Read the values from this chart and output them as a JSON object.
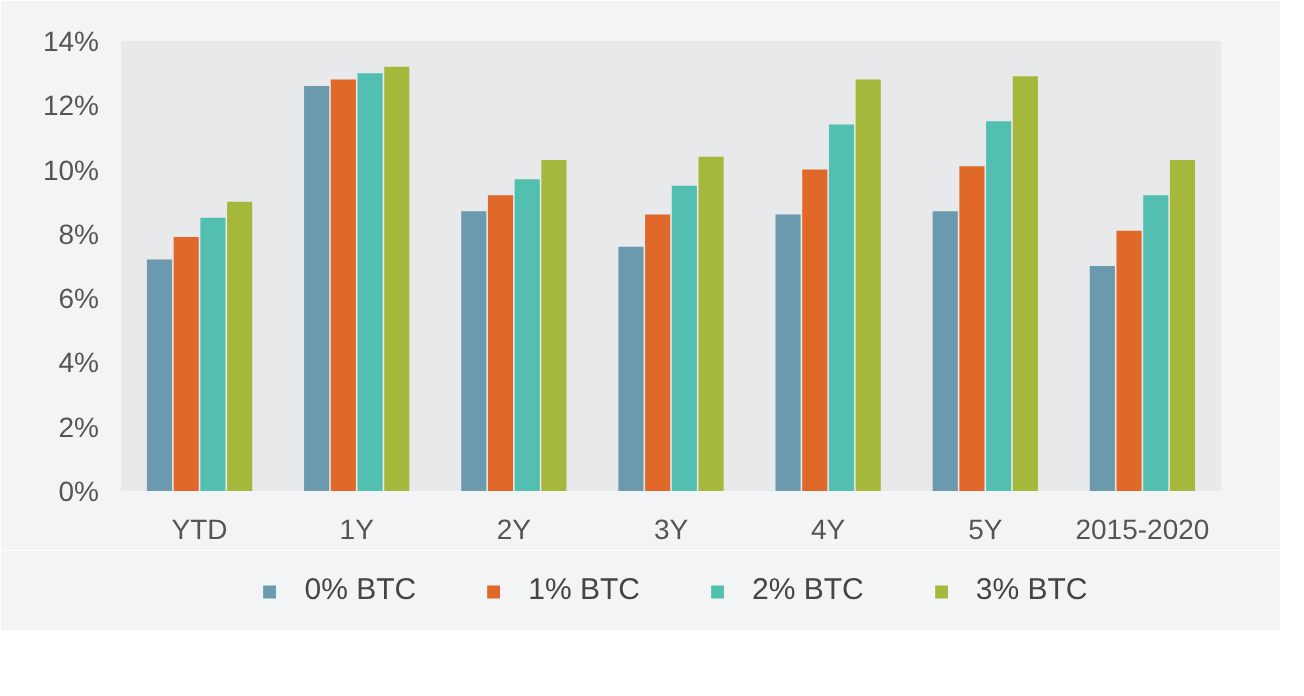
{
  "chart_data": {
    "type": "bar",
    "categories": [
      "YTD",
      "1Y",
      "2Y",
      "3Y",
      "4Y",
      "5Y",
      "2015-2020"
    ],
    "series": [
      {
        "name": "0% BTC",
        "color": "#6b9aaf",
        "values": [
          7.2,
          12.6,
          8.7,
          7.6,
          8.6,
          8.7,
          7.0
        ]
      },
      {
        "name": "1% BTC",
        "color": "#e0692a",
        "values": [
          7.9,
          12.8,
          9.2,
          8.6,
          10.0,
          10.1,
          8.1
        ]
      },
      {
        "name": "2% BTC",
        "color": "#52bfb0",
        "values": [
          8.5,
          13.0,
          9.7,
          9.5,
          11.4,
          11.5,
          9.2
        ]
      },
      {
        "name": "3% BTC",
        "color": "#a5b83c",
        "values": [
          9.0,
          13.2,
          10.3,
          10.4,
          12.8,
          12.9,
          10.3
        ]
      }
    ],
    "ylim": [
      0,
      14
    ],
    "yticks": [
      {
        "value": 0,
        "label": "0%"
      },
      {
        "value": 2,
        "label": "2%"
      },
      {
        "value": 4,
        "label": "4%"
      },
      {
        "value": 6,
        "label": "6%"
      },
      {
        "value": 8,
        "label": "8%"
      },
      {
        "value": 10,
        "label": "10%"
      },
      {
        "value": 12,
        "label": "12%"
      },
      {
        "value": 14,
        "label": "14%"
      }
    ],
    "grid": false,
    "legend": "bottom"
  }
}
